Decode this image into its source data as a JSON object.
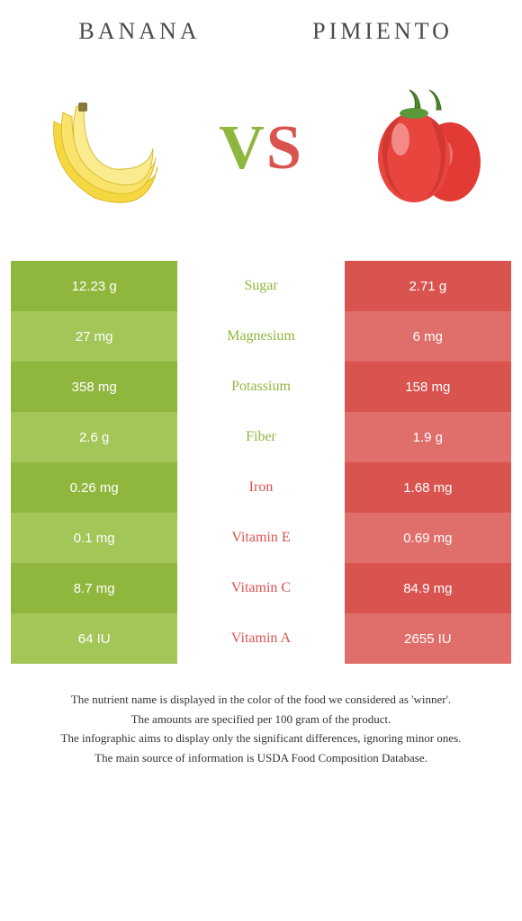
{
  "titles": {
    "left": "BANANA",
    "right": "PIMIENTO"
  },
  "vs": {
    "text": "VS",
    "leftColor": "#8fb73e",
    "rightColor": "#d9534f"
  },
  "colors": {
    "leftDark": "#8fb73e",
    "leftLight": "#a2c657",
    "rightDark": "#d9534f",
    "rightLight": "#e06e6a",
    "midTextLeft": "#8fb73e",
    "midTextRight": "#d9534f",
    "background": "#ffffff"
  },
  "rows": [
    {
      "left": "12.23 g",
      "label": "Sugar",
      "right": "2.71 g",
      "winner": "left",
      "shade": "dark"
    },
    {
      "left": "27 mg",
      "label": "Magnesium",
      "right": "6 mg",
      "winner": "left",
      "shade": "light"
    },
    {
      "left": "358 mg",
      "label": "Potassium",
      "right": "158 mg",
      "winner": "left",
      "shade": "dark"
    },
    {
      "left": "2.6 g",
      "label": "Fiber",
      "right": "1.9 g",
      "winner": "left",
      "shade": "light"
    },
    {
      "left": "0.26 mg",
      "label": "Iron",
      "right": "1.68 mg",
      "winner": "right",
      "shade": "dark"
    },
    {
      "left": "0.1 mg",
      "label": "Vitamin E",
      "right": "0.69 mg",
      "winner": "right",
      "shade": "light"
    },
    {
      "left": "8.7 mg",
      "label": "Vitamin C",
      "right": "84.9 mg",
      "winner": "right",
      "shade": "dark"
    },
    {
      "left": "64 IU",
      "label": "Vitamin A",
      "right": "2655 IU",
      "winner": "right",
      "shade": "light"
    }
  ],
  "footnotes": [
    "The nutrient name is displayed in the color of the food we considered as 'winner'.",
    "The amounts are specified per 100 gram of the product.",
    "The infographic aims to display only the significant differences, ignoring minor ones.",
    "The main source of information is USDA Food Composition Database."
  ]
}
